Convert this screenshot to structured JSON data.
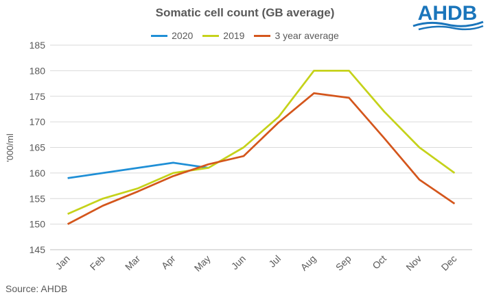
{
  "logo": {
    "text": "AHDB",
    "color": "#1a75bb"
  },
  "source": "Source: AHDB",
  "chart_data": {
    "type": "line",
    "title": "Somatic cell count (GB average)",
    "xlabel": "",
    "ylabel": "'000/ml",
    "ylim": [
      145,
      185
    ],
    "yticks": [
      145,
      150,
      155,
      160,
      165,
      170,
      175,
      180,
      185
    ],
    "categories": [
      "Jan",
      "Feb",
      "Mar",
      "Apr",
      "May",
      "Jun",
      "Jul",
      "Aug",
      "Sep",
      "Oct",
      "Nov",
      "Dec"
    ],
    "grid": true,
    "legend_position": "top",
    "series": [
      {
        "name": "2020",
        "color": "#1f8fd6",
        "values": [
          159,
          160,
          161,
          162,
          161,
          null,
          null,
          null,
          null,
          null,
          null,
          null
        ]
      },
      {
        "name": "2019",
        "color": "#c5d21a",
        "values": [
          152,
          155,
          157,
          160,
          161,
          165,
          171,
          180,
          180,
          172,
          165,
          160
        ]
      },
      {
        "name": "3 year average",
        "color": "#d4561c",
        "values": [
          150,
          153.6,
          156.4,
          159.4,
          161.7,
          163.3,
          169.9,
          175.6,
          174.7,
          166.8,
          158.7,
          154
        ]
      }
    ]
  }
}
